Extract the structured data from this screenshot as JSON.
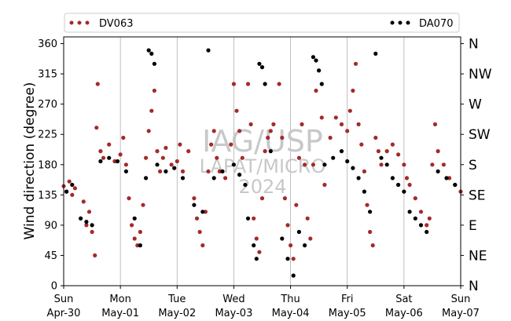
{
  "chart_data": {
    "type": "scatter",
    "ylabel": "Wind direction (degree)",
    "ylim": [
      0,
      370
    ],
    "yticks": [
      0,
      45,
      90,
      135,
      180,
      225,
      270,
      315,
      360
    ],
    "right_axis_labels": [
      "N",
      "NE",
      "E",
      "SE",
      "S",
      "SW",
      "W",
      "NW",
      "N"
    ],
    "xlim": [
      "2017-04-30",
      "2017-05-07"
    ],
    "x_ticks": [
      {
        "day": "Sun",
        "date": "Apr-30"
      },
      {
        "day": "Mon",
        "date": "May-01"
      },
      {
        "day": "Tue",
        "date": "May-02"
      },
      {
        "day": "Wed",
        "date": "May-03"
      },
      {
        "day": "Thu",
        "date": "May-04"
      },
      {
        "day": "Fri",
        "date": "May-05"
      },
      {
        "day": "Sat",
        "date": "May-06"
      },
      {
        "day": "Sun",
        "date": "May-07"
      }
    ],
    "grid": "vertical-day-lines",
    "legend": {
      "placement": "top-outside"
    },
    "watermark": [
      "IAG/USP",
      "LAPAT/MICRO",
      "2024"
    ],
    "series": [
      {
        "name": "DV063",
        "color": "#a52a2a",
        "points": [
          [
            0.0,
            148
          ],
          [
            0.05,
            140
          ],
          [
            0.1,
            155
          ],
          [
            0.15,
            135
          ],
          [
            0.2,
            145
          ],
          [
            0.3,
            100
          ],
          [
            0.35,
            125
          ],
          [
            0.4,
            90
          ],
          [
            0.45,
            110
          ],
          [
            0.5,
            80
          ],
          [
            0.55,
            45
          ],
          [
            0.58,
            235
          ],
          [
            0.6,
            300
          ],
          [
            0.65,
            200
          ],
          [
            0.7,
            190
          ],
          [
            0.8,
            210
          ],
          [
            0.9,
            185
          ],
          [
            1.0,
            195
          ],
          [
            1.05,
            220
          ],
          [
            1.1,
            180
          ],
          [
            1.15,
            130
          ],
          [
            1.2,
            90
          ],
          [
            1.25,
            70
          ],
          [
            1.3,
            60
          ],
          [
            1.35,
            80
          ],
          [
            1.4,
            120
          ],
          [
            1.45,
            190
          ],
          [
            1.5,
            230
          ],
          [
            1.55,
            260
          ],
          [
            1.6,
            290
          ],
          [
            1.65,
            200
          ],
          [
            1.7,
            170
          ],
          [
            1.75,
            190
          ],
          [
            1.8,
            205
          ],
          [
            1.9,
            180
          ],
          [
            2.0,
            185
          ],
          [
            2.05,
            210
          ],
          [
            2.1,
            170
          ],
          [
            2.2,
            200
          ],
          [
            2.3,
            130
          ],
          [
            2.35,
            100
          ],
          [
            2.4,
            80
          ],
          [
            2.45,
            60
          ],
          [
            2.5,
            110
          ],
          [
            2.55,
            170
          ],
          [
            2.6,
            210
          ],
          [
            2.65,
            230
          ],
          [
            2.7,
            190
          ],
          [
            2.75,
            170
          ],
          [
            2.85,
            160
          ],
          [
            2.95,
            210
          ],
          [
            3.0,
            300
          ],
          [
            3.05,
            260
          ],
          [
            3.1,
            230
          ],
          [
            3.15,
            190
          ],
          [
            3.25,
            300
          ],
          [
            3.3,
            240
          ],
          [
            3.35,
            100
          ],
          [
            3.4,
            70
          ],
          [
            3.45,
            50
          ],
          [
            3.5,
            130
          ],
          [
            3.55,
            200
          ],
          [
            3.6,
            220
          ],
          [
            3.65,
            230
          ],
          [
            3.7,
            240
          ],
          [
            3.8,
            300
          ],
          [
            3.85,
            220
          ],
          [
            3.9,
            130
          ],
          [
            3.95,
            90
          ],
          [
            4.0,
            60
          ],
          [
            4.05,
            40
          ],
          [
            4.1,
            120
          ],
          [
            4.15,
            190
          ],
          [
            4.2,
            240
          ],
          [
            4.25,
            180
          ],
          [
            4.3,
            100
          ],
          [
            4.35,
            70
          ],
          [
            4.4,
            180
          ],
          [
            4.45,
            290
          ],
          [
            4.5,
            320
          ],
          [
            4.55,
            250
          ],
          [
            4.6,
            150
          ],
          [
            4.7,
            220
          ],
          [
            4.8,
            250
          ],
          [
            4.9,
            240
          ],
          [
            5.0,
            230
          ],
          [
            5.05,
            260
          ],
          [
            5.1,
            290
          ],
          [
            5.15,
            330
          ],
          [
            5.2,
            240
          ],
          [
            5.25,
            210
          ],
          [
            5.3,
            170
          ],
          [
            5.35,
            120
          ],
          [
            5.4,
            80
          ],
          [
            5.45,
            60
          ],
          [
            5.5,
            220
          ],
          [
            5.55,
            200
          ],
          [
            5.6,
            180
          ],
          [
            5.7,
            200
          ],
          [
            5.8,
            210
          ],
          [
            5.9,
            195
          ],
          [
            6.0,
            180
          ],
          [
            6.05,
            160
          ],
          [
            6.1,
            150
          ],
          [
            6.2,
            130
          ],
          [
            6.3,
            110
          ],
          [
            6.4,
            90
          ],
          [
            6.45,
            100
          ],
          [
            6.5,
            180
          ],
          [
            6.55,
            240
          ],
          [
            6.6,
            200
          ],
          [
            6.7,
            180
          ],
          [
            6.8,
            160
          ],
          [
            6.9,
            150
          ],
          [
            7.0,
            140
          ]
        ]
      },
      {
        "name": "DA070",
        "color": "#000000",
        "points": [
          [
            0.05,
            140
          ],
          [
            0.15,
            150
          ],
          [
            0.3,
            100
          ],
          [
            0.4,
            95
          ],
          [
            0.5,
            90
          ],
          [
            0.65,
            185
          ],
          [
            0.8,
            190
          ],
          [
            0.95,
            185
          ],
          [
            1.1,
            170
          ],
          [
            1.25,
            100
          ],
          [
            1.35,
            60
          ],
          [
            1.45,
            160
          ],
          [
            1.5,
            350
          ],
          [
            1.55,
            345
          ],
          [
            1.6,
            330
          ],
          [
            1.65,
            180
          ],
          [
            1.8,
            170
          ],
          [
            1.95,
            175
          ],
          [
            2.1,
            160
          ],
          [
            2.3,
            120
          ],
          [
            2.45,
            110
          ],
          [
            2.55,
            350
          ],
          [
            2.65,
            160
          ],
          [
            2.8,
            170
          ],
          [
            3.0,
            180
          ],
          [
            3.1,
            165
          ],
          [
            3.2,
            150
          ],
          [
            3.25,
            100
          ],
          [
            3.35,
            60
          ],
          [
            3.4,
            40
          ],
          [
            3.45,
            330
          ],
          [
            3.5,
            325
          ],
          [
            3.55,
            300
          ],
          [
            3.65,
            200
          ],
          [
            3.85,
            70
          ],
          [
            3.95,
            40
          ],
          [
            4.05,
            15
          ],
          [
            4.15,
            80
          ],
          [
            4.25,
            60
          ],
          [
            4.4,
            340
          ],
          [
            4.45,
            335
          ],
          [
            4.5,
            320
          ],
          [
            4.55,
            300
          ],
          [
            4.6,
            180
          ],
          [
            4.75,
            190
          ],
          [
            4.9,
            200
          ],
          [
            5.0,
            185
          ],
          [
            5.1,
            175
          ],
          [
            5.2,
            160
          ],
          [
            5.3,
            140
          ],
          [
            5.4,
            110
          ],
          [
            5.5,
            345
          ],
          [
            5.6,
            190
          ],
          [
            5.7,
            180
          ],
          [
            5.8,
            160
          ],
          [
            5.9,
            150
          ],
          [
            6.0,
            140
          ],
          [
            6.1,
            110
          ],
          [
            6.2,
            100
          ],
          [
            6.3,
            90
          ],
          [
            6.4,
            80
          ],
          [
            6.6,
            170
          ],
          [
            6.75,
            160
          ],
          [
            6.9,
            150
          ]
        ]
      }
    ]
  }
}
